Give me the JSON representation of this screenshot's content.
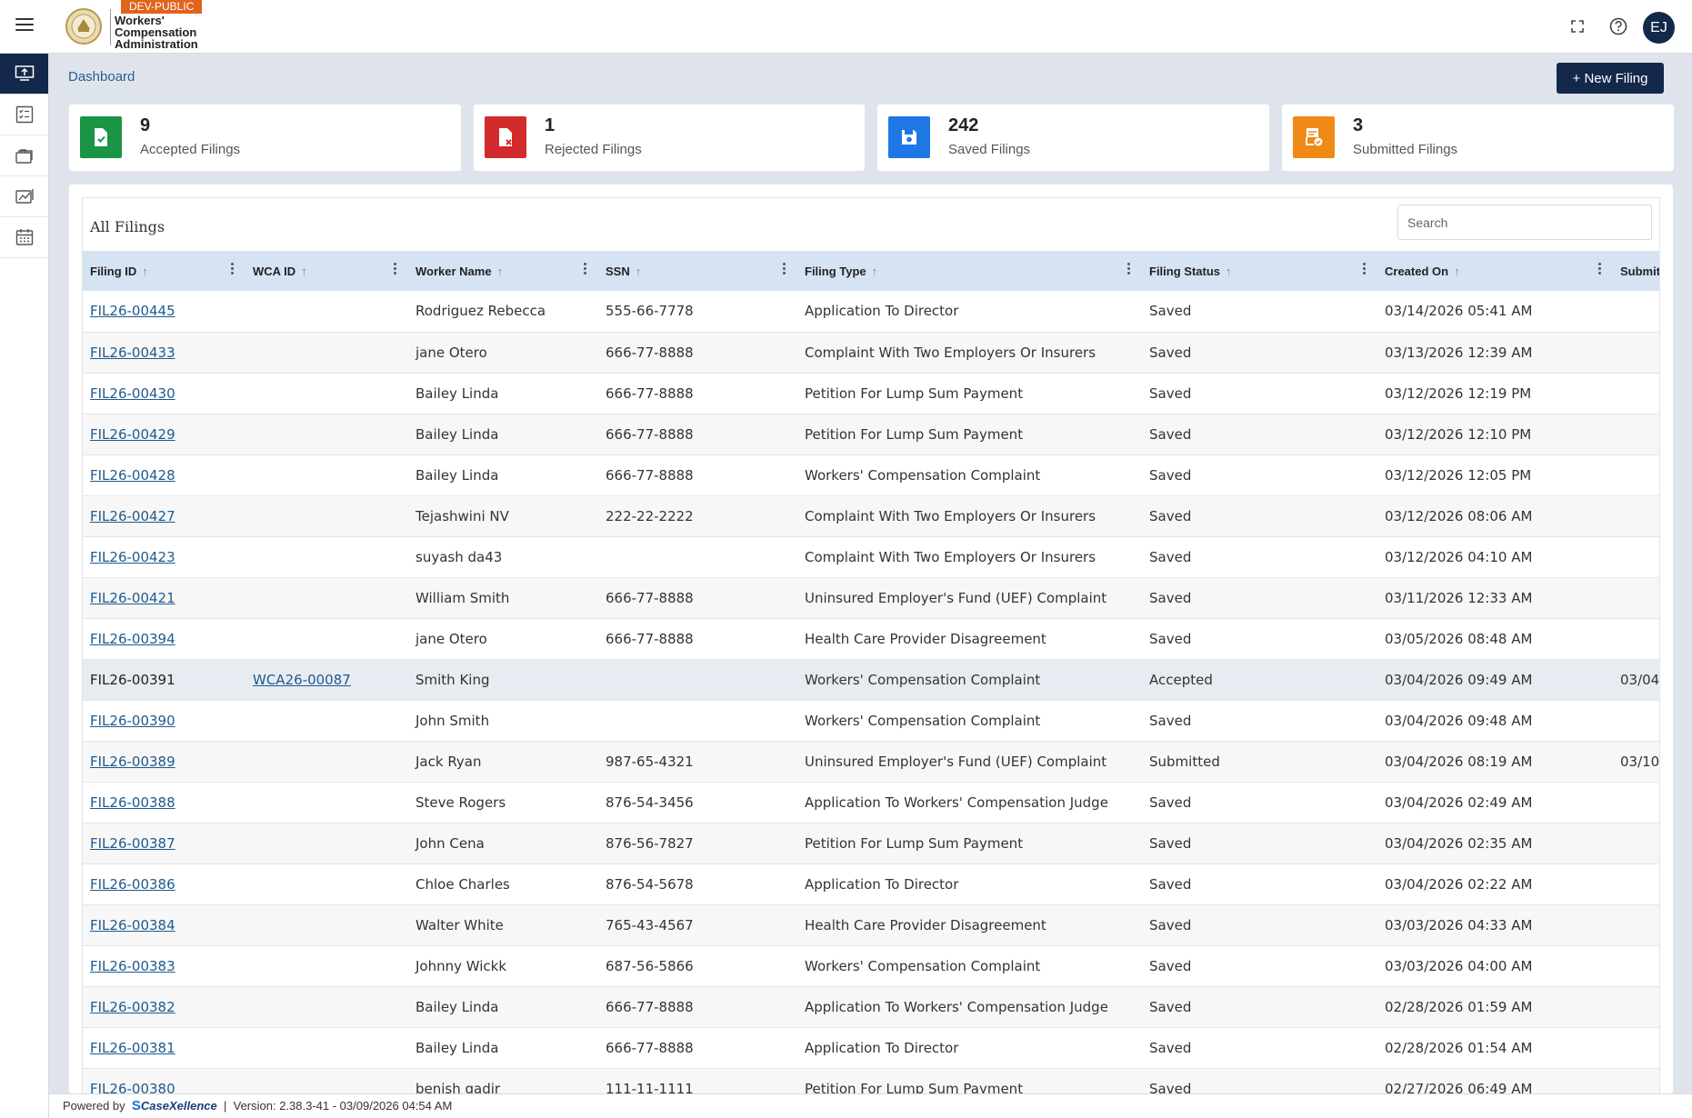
{
  "header": {
    "badge": "DEV-PUBLIC",
    "logo_line1": "Workers'",
    "logo_line2": "Compensation",
    "logo_line3": "Administration",
    "avatar_initials": "EJ"
  },
  "sidebar": {
    "items": [
      {
        "icon": "upload-monitor-icon",
        "active": true
      },
      {
        "icon": "checklist-icon",
        "active": false
      },
      {
        "icon": "briefcase-stack-icon",
        "active": false
      },
      {
        "icon": "chart-card-icon",
        "active": false
      },
      {
        "icon": "calendar-icon",
        "active": false
      }
    ]
  },
  "breadcrumb": "Dashboard",
  "new_filing_label": "+ New Filing",
  "stats": [
    {
      "count": "9",
      "label": "Accepted Filings",
      "color": "#1a9445",
      "icon": "file-check-icon"
    },
    {
      "count": "1",
      "label": "Rejected Filings",
      "color": "#d32b2b",
      "icon": "file-x-icon"
    },
    {
      "count": "242",
      "label": "Saved Filings",
      "color": "#1f77e5",
      "icon": "floppy-disk-icon"
    },
    {
      "count": "3",
      "label": "Submitted Filings",
      "color": "#ef8a16",
      "icon": "file-submit-icon"
    }
  ],
  "panel": {
    "title": "All Filings",
    "search_placeholder": "Search"
  },
  "columns": [
    "Filing ID",
    "WCA ID",
    "Worker Name",
    "SSN",
    "Filing Type",
    "Filing Status",
    "Created On",
    "Submit"
  ],
  "rows": [
    {
      "filing_id": "FIL26-00445",
      "wca_id": "",
      "worker": "Rodriguez Rebecca",
      "ssn": "555-66-7778",
      "type": "Application To Director",
      "status": "Saved",
      "created": "03/14/2026 05:41 AM",
      "submitted": ""
    },
    {
      "filing_id": "FIL26-00433",
      "wca_id": "",
      "worker": "jane Otero",
      "ssn": "666-77-8888",
      "type": "Complaint With Two Employers Or Insurers",
      "status": "Saved",
      "created": "03/13/2026 12:39 AM",
      "submitted": ""
    },
    {
      "filing_id": "FIL26-00430",
      "wca_id": "",
      "worker": "Bailey Linda",
      "ssn": "666-77-8888",
      "type": "Petition For Lump Sum Payment",
      "status": "Saved",
      "created": "03/12/2026 12:19 PM",
      "submitted": ""
    },
    {
      "filing_id": "FIL26-00429",
      "wca_id": "",
      "worker": "Bailey Linda",
      "ssn": "666-77-8888",
      "type": "Petition For Lump Sum Payment",
      "status": "Saved",
      "created": "03/12/2026 12:10 PM",
      "submitted": ""
    },
    {
      "filing_id": "FIL26-00428",
      "wca_id": "",
      "worker": "Bailey Linda",
      "ssn": "666-77-8888",
      "type": "Workers' Compensation Complaint",
      "status": "Saved",
      "created": "03/12/2026 12:05 PM",
      "submitted": ""
    },
    {
      "filing_id": "FIL26-00427",
      "wca_id": "",
      "worker": "Tejashwini NV",
      "ssn": "222-22-2222",
      "type": "Complaint With Two Employers Or Insurers",
      "status": "Saved",
      "created": "03/12/2026 08:06 AM",
      "submitted": ""
    },
    {
      "filing_id": "FIL26-00423",
      "wca_id": "",
      "worker": "suyash da43",
      "ssn": "",
      "type": "Complaint With Two Employers Or Insurers",
      "status": "Saved",
      "created": "03/12/2026 04:10 AM",
      "submitted": ""
    },
    {
      "filing_id": "FIL26-00421",
      "wca_id": "",
      "worker": "William Smith",
      "ssn": "666-77-8888",
      "type": "Uninsured Employer's Fund (UEF) Complaint",
      "status": "Saved",
      "created": "03/11/2026 12:33 AM",
      "submitted": ""
    },
    {
      "filing_id": "FIL26-00394",
      "wca_id": "",
      "worker": "jane Otero",
      "ssn": "666-77-8888",
      "type": "Health Care Provider Disagreement",
      "status": "Saved",
      "created": "03/05/2026 08:48 AM",
      "submitted": ""
    },
    {
      "filing_id": "FIL26-00391",
      "wca_id": "WCA26-00087",
      "worker": "Smith King",
      "ssn": "",
      "type": "Workers' Compensation Complaint",
      "status": "Accepted",
      "created": "03/04/2026 09:49 AM",
      "submitted": "03/04,",
      "plain_id": true,
      "highlight": true
    },
    {
      "filing_id": "FIL26-00390",
      "wca_id": "",
      "worker": "John Smith",
      "ssn": "",
      "type": "Workers' Compensation Complaint",
      "status": "Saved",
      "created": "03/04/2026 09:48 AM",
      "submitted": ""
    },
    {
      "filing_id": "FIL26-00389",
      "wca_id": "",
      "worker": "Jack Ryan",
      "ssn": "987-65-4321",
      "type": "Uninsured Employer's Fund (UEF) Complaint",
      "status": "Submitted",
      "created": "03/04/2026 08:19 AM",
      "submitted": "03/10,"
    },
    {
      "filing_id": "FIL26-00388",
      "wca_id": "",
      "worker": "Steve Rogers",
      "ssn": "876-54-3456",
      "type": "Application To Workers' Compensation Judge",
      "status": "Saved",
      "created": "03/04/2026 02:49 AM",
      "submitted": ""
    },
    {
      "filing_id": "FIL26-00387",
      "wca_id": "",
      "worker": "John Cena",
      "ssn": "876-56-7827",
      "type": "Petition For Lump Sum Payment",
      "status": "Saved",
      "created": "03/04/2026 02:35 AM",
      "submitted": ""
    },
    {
      "filing_id": "FIL26-00386",
      "wca_id": "",
      "worker": "Chloe Charles",
      "ssn": "876-54-5678",
      "type": "Application To Director",
      "status": "Saved",
      "created": "03/04/2026 02:22 AM",
      "submitted": ""
    },
    {
      "filing_id": "FIL26-00384",
      "wca_id": "",
      "worker": "Walter White",
      "ssn": "765-43-4567",
      "type": "Health Care Provider Disagreement",
      "status": "Saved",
      "created": "03/03/2026 04:33 AM",
      "submitted": ""
    },
    {
      "filing_id": "FIL26-00383",
      "wca_id": "",
      "worker": "Johnny Wickk",
      "ssn": "687-56-5866",
      "type": "Workers' Compensation Complaint",
      "status": "Saved",
      "created": "03/03/2026 04:00 AM",
      "submitted": ""
    },
    {
      "filing_id": "FIL26-00382",
      "wca_id": "",
      "worker": "Bailey Linda",
      "ssn": "666-77-8888",
      "type": "Application To Workers' Compensation Judge",
      "status": "Saved",
      "created": "02/28/2026 01:59 AM",
      "submitted": ""
    },
    {
      "filing_id": "FIL26-00381",
      "wca_id": "",
      "worker": "Bailey Linda",
      "ssn": "666-77-8888",
      "type": "Application To Director",
      "status": "Saved",
      "created": "02/28/2026 01:54 AM",
      "submitted": ""
    },
    {
      "filing_id": "FIL26-00380",
      "wca_id": "",
      "worker": "benish qadir",
      "ssn": "111-11-1111",
      "type": "Petition For Lump Sum Payment",
      "status": "Saved",
      "created": "02/27/2026 06:49 AM",
      "submitted": ""
    }
  ],
  "footer": {
    "powered_by": "Powered by",
    "brand": "CaseXellence",
    "separator": "|",
    "version": "Version: 2.38.3-41 - 03/09/2026 04:54 AM"
  }
}
